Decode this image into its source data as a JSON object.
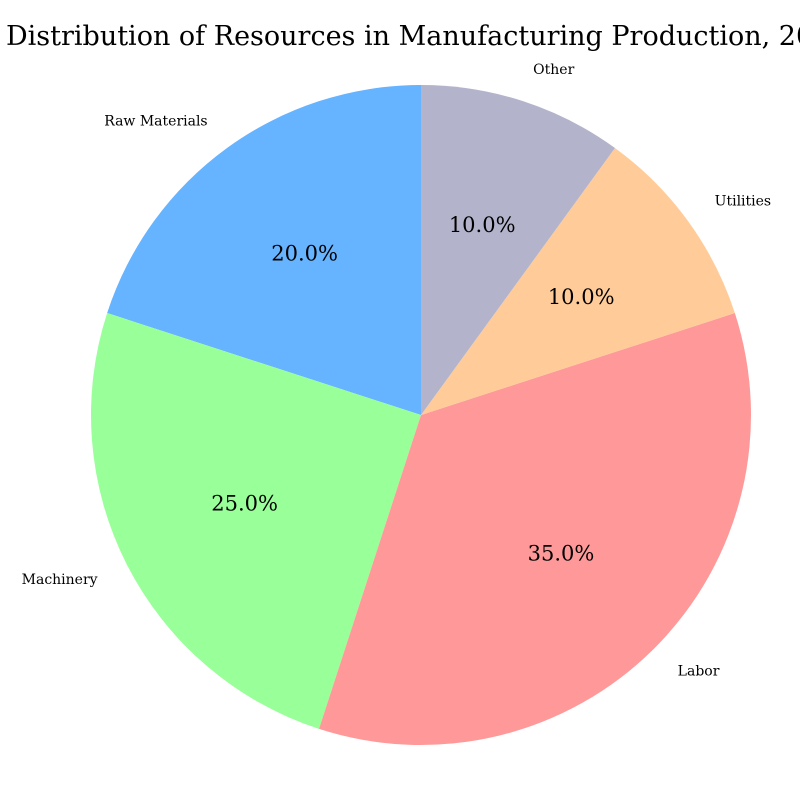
{
  "chart_data": {
    "type": "pie",
    "title": "Distribution of Resources in Manufacturing Production, 20",
    "start_angle_deg": 90,
    "direction": "counterclockwise",
    "slices": [
      {
        "label": "Raw Materials",
        "value": 20.0,
        "pct_label": "20.0%",
        "color": "#66b3ff"
      },
      {
        "label": "Machinery",
        "value": 25.0,
        "pct_label": "25.0%",
        "color": "#99ff99"
      },
      {
        "label": "Labor",
        "value": 35.0,
        "pct_label": "35.0%",
        "color": "#ff9999"
      },
      {
        "label": "Utilities",
        "value": 10.0,
        "pct_label": "10.0%",
        "color": "#ffcc99"
      },
      {
        "label": "Other",
        "value": 10.0,
        "pct_label": "10.0%",
        "color": "#b3b3cc"
      }
    ]
  }
}
